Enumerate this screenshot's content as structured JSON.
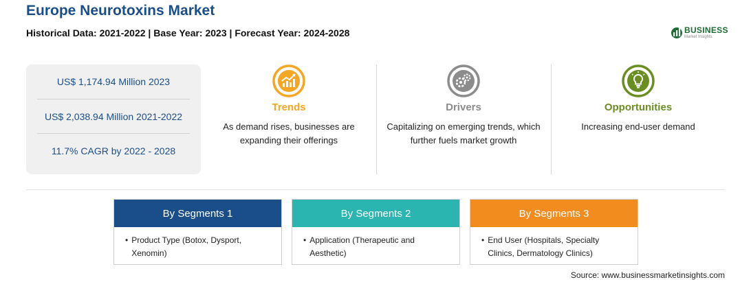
{
  "header": {
    "title": "Europe Neurotoxins Market",
    "subtitle": "Historical Data: 2021-2022 | Base Year: 2023 | Forecast Year: 2024-2028"
  },
  "logo": {
    "main": "BUSINESS",
    "sub": "Market Insights"
  },
  "stats": [
    "US$ 1,174.94 Million 2023",
    "US$ 2,038.94 Million 2021-2022",
    "11.7% CAGR by 2022 - 2028"
  ],
  "features": [
    {
      "title": "Trends",
      "desc": "As demand rises, businesses are expanding their offerings",
      "color": "#f5a623",
      "icon": "trend-chart-icon"
    },
    {
      "title": "Drivers",
      "desc": "Capitalizing on emerging trends, which further fuels market growth",
      "color": "#8c8c8c",
      "icon": "gears-icon"
    },
    {
      "title": "Opportunities",
      "desc": "Increasing end-user demand",
      "color": "#6b8e23",
      "icon": "lightbulb-icon"
    }
  ],
  "segments": [
    {
      "title": "By Segments 1",
      "item": "Product Type (Botox, Dysport, Xenomin)",
      "color": "#1a4e8a"
    },
    {
      "title": "By Segments 2",
      "item": "Application (Therapeutic and Aesthetic)",
      "color": "#2bb5b0"
    },
    {
      "title": "By Segments 3",
      "item": "End User (Hospitals, Specialty Clinics, Dermatology Clinics)",
      "color": "#f28c1e"
    }
  ],
  "source": "Source: www.businessmarketinsights.com"
}
